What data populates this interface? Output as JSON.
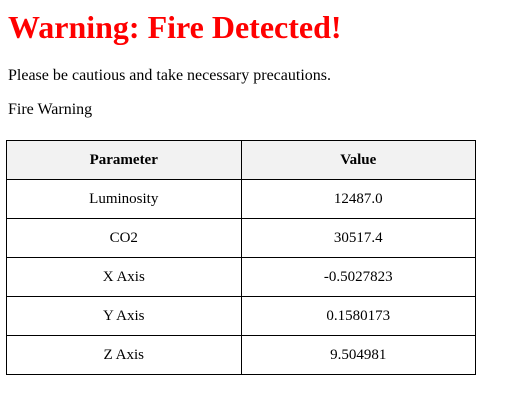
{
  "heading": "Warning: Fire Detected!",
  "message": "Please be cautious and take necessary precautions.",
  "subheading": "Fire Warning",
  "table": {
    "headers": [
      "Parameter",
      "Value"
    ],
    "rows": [
      {
        "parameter": "Luminosity",
        "value": "12487.0"
      },
      {
        "parameter": "CO2",
        "value": "30517.4"
      },
      {
        "parameter": "X Axis",
        "value": "-0.5027823"
      },
      {
        "parameter": "Y Axis",
        "value": "0.1580173"
      },
      {
        "parameter": "Z Axis",
        "value": "9.504981"
      }
    ]
  },
  "colors": {
    "heading": "#ff0000",
    "header_bg": "#f2f2f2"
  }
}
